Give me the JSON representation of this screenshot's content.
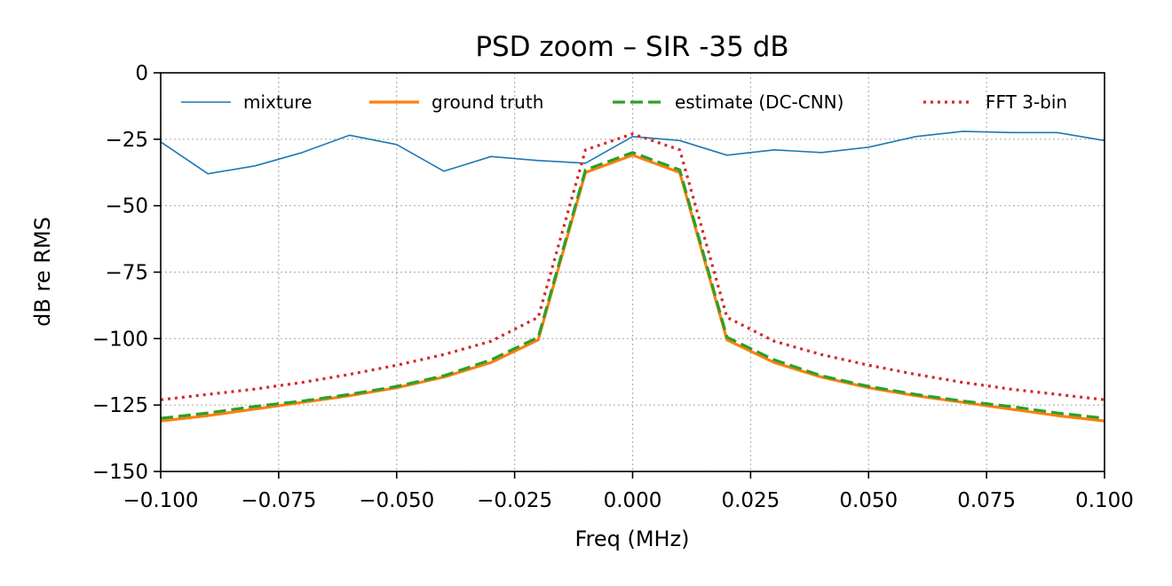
{
  "chart_data": {
    "type": "line",
    "title": "PSD zoom – SIR -35 dB",
    "xlabel": "Freq (MHz)",
    "ylabel": "dB re RMS",
    "xlim": [
      -0.1,
      0.1
    ],
    "ylim": [
      -150,
      0
    ],
    "x_ticks": [
      -0.1,
      -0.075,
      -0.05,
      -0.025,
      0.0,
      0.025,
      0.05,
      0.075,
      0.1
    ],
    "x_tick_labels": [
      "−0.100",
      "−0.075",
      "−0.050",
      "−0.025",
      "0.000",
      "0.025",
      "0.050",
      "0.075",
      "0.100"
    ],
    "y_ticks": [
      0,
      -25,
      -50,
      -75,
      -100,
      -125,
      -150
    ],
    "y_tick_labels": [
      "0",
      "−25",
      "−50",
      "−75",
      "−100",
      "−125",
      "−150"
    ],
    "grid": true,
    "legend_position": "top",
    "x": [
      -0.1,
      -0.09,
      -0.08,
      -0.07,
      -0.06,
      -0.05,
      -0.04,
      -0.03,
      -0.02,
      -0.01,
      0.0,
      0.01,
      0.02,
      0.03,
      0.04,
      0.05,
      0.06,
      0.07,
      0.08,
      0.09,
      0.1
    ],
    "series": [
      {
        "name": "mixture",
        "color": "#1f77b4",
        "style": "solid",
        "values": [
          -26,
          -38,
          -35,
          -30,
          -23.5,
          -27,
          -37,
          -31.5,
          -33,
          -34,
          -24,
          -25.5,
          -31,
          -29,
          -30,
          -28,
          -24,
          -22,
          -22.5,
          -22.5,
          -25.5
        ]
      },
      {
        "name": "ground truth",
        "color": "#ff7f0e",
        "style": "solid",
        "values": [
          -131,
          -129,
          -126.5,
          -124,
          -121.5,
          -118.5,
          -114.5,
          -109,
          -100.5,
          -37.5,
          -31,
          -37.5,
          -100.5,
          -109,
          -114.5,
          -118.5,
          -121.5,
          -124,
          -126.5,
          -129,
          -131
        ]
      },
      {
        "name": "estimate (DC-CNN)",
        "color": "#2ca02c",
        "style": "dashed",
        "values": [
          -130,
          -128,
          -125.5,
          -123.5,
          -121,
          -118,
          -114,
          -108,
          -99.5,
          -36.5,
          -30,
          -36.5,
          -99.5,
          -108,
          -114,
          -118,
          -121,
          -123.5,
          -125.5,
          -128,
          -130
        ]
      },
      {
        "name": "FFT 3-bin",
        "color": "#d62728",
        "style": "dotted",
        "values": [
          -123,
          -121,
          -119,
          -116.5,
          -113.5,
          -110,
          -106,
          -101,
          -92,
          -29,
          -23,
          -29,
          -92,
          -101,
          -106,
          -110,
          -113.5,
          -116.5,
          -119,
          -121,
          -123
        ]
      }
    ]
  }
}
